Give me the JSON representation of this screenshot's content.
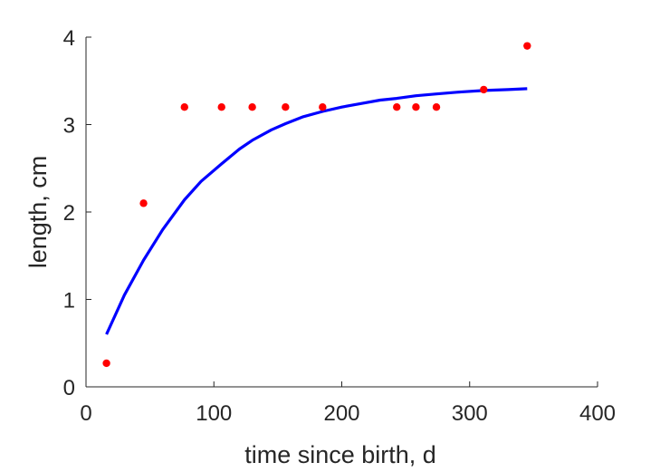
{
  "chart_data": {
    "type": "scatter",
    "title": "",
    "xlabel": "time since birth, d",
    "ylabel": "length, cm",
    "xlim": [
      0,
      400
    ],
    "ylim": [
      0,
      4
    ],
    "xticks": [
      0,
      100,
      200,
      300,
      400
    ],
    "yticks": [
      0,
      1,
      2,
      3,
      4
    ],
    "grid": false,
    "series": [
      {
        "kind": "points",
        "color": "#ff0000",
        "x": [
          16,
          45,
          77,
          106,
          130,
          156,
          185,
          243,
          258,
          274,
          311,
          345
        ],
        "y": [
          0.27,
          2.1,
          3.2,
          3.2,
          3.2,
          3.2,
          3.2,
          3.2,
          3.2,
          3.2,
          3.4,
          3.9
        ]
      },
      {
        "kind": "line",
        "color": "#0000ff",
        "x": [
          16,
          30,
          45,
          60,
          77,
          90,
          106,
          120,
          130,
          145,
          156,
          170,
          185,
          200,
          215,
          230,
          243,
          258,
          274,
          290,
          311,
          330,
          345
        ],
        "y": [
          0.6,
          1.05,
          1.45,
          1.8,
          2.14,
          2.35,
          2.55,
          2.72,
          2.82,
          2.94,
          3.01,
          3.09,
          3.15,
          3.2,
          3.24,
          3.28,
          3.3,
          3.33,
          3.35,
          3.37,
          3.39,
          3.4,
          3.41
        ]
      }
    ]
  }
}
